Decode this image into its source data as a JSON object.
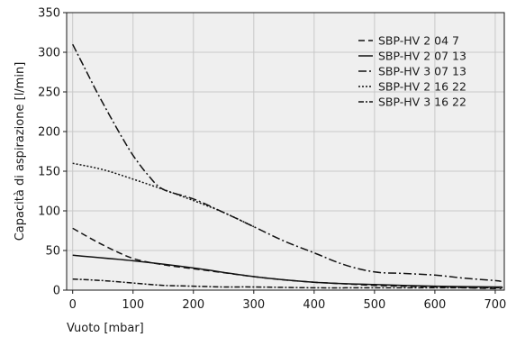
{
  "chart_data": {
    "type": "line",
    "title": "",
    "xlabel": "Vuoto [mbar]",
    "ylabel": "Capacità di aspirazione [l/min]",
    "xlim": [
      -10,
      715
    ],
    "ylim": [
      0,
      350
    ],
    "xticks": [
      0,
      100,
      200,
      300,
      400,
      500,
      600,
      700
    ],
    "yticks": [
      0,
      50,
      100,
      150,
      200,
      250,
      300,
      350
    ],
    "grid": true,
    "legend_position": "top-right",
    "series": [
      {
        "name": "SBP-HV 2 04 7",
        "dash": "7,4",
        "x": [
          0,
          50,
          100,
          150,
          200,
          250,
          300,
          350,
          400,
          450,
          500,
          550,
          600,
          650,
          700,
          710
        ],
        "y": [
          78,
          57,
          40,
          32,
          27,
          22,
          17,
          13,
          10,
          8,
          6,
          5,
          4,
          3,
          2,
          2
        ]
      },
      {
        "name": "SBP-HV 2 07 13",
        "dash": "",
        "x": [
          0,
          100,
          200,
          300,
          400,
          500,
          600,
          700,
          710
        ],
        "y": [
          44,
          37,
          28,
          17,
          10,
          7,
          5,
          4,
          4
        ]
      },
      {
        "name": "SBP-HV 3 07 13",
        "dash": "9,3,2,3",
        "x": [
          0,
          20,
          40,
          60,
          80,
          100,
          125,
          150,
          200,
          250,
          300,
          350,
          400,
          450,
          500,
          550,
          600,
          650,
          700,
          710
        ],
        "y": [
          310,
          280,
          250,
          222,
          195,
          170,
          145,
          127,
          115,
          98,
          80,
          62,
          47,
          32,
          23,
          21,
          19,
          15,
          12,
          11
        ]
      },
      {
        "name": "SBP-HV 2 16 22",
        "dash": "2,2",
        "x": [
          0,
          50,
          100,
          150,
          200,
          250,
          300
        ],
        "y": [
          160,
          152,
          140,
          127,
          113,
          98,
          80
        ]
      },
      {
        "name": "SBP-HV 3 16 22",
        "dash": "6,2,2,2",
        "x": [
          0,
          50,
          100,
          150,
          200,
          250,
          300,
          400,
          500,
          600,
          700,
          710
        ],
        "y": [
          14,
          12,
          9,
          6,
          5,
          4,
          4,
          3,
          3,
          3,
          3,
          3
        ]
      }
    ]
  }
}
